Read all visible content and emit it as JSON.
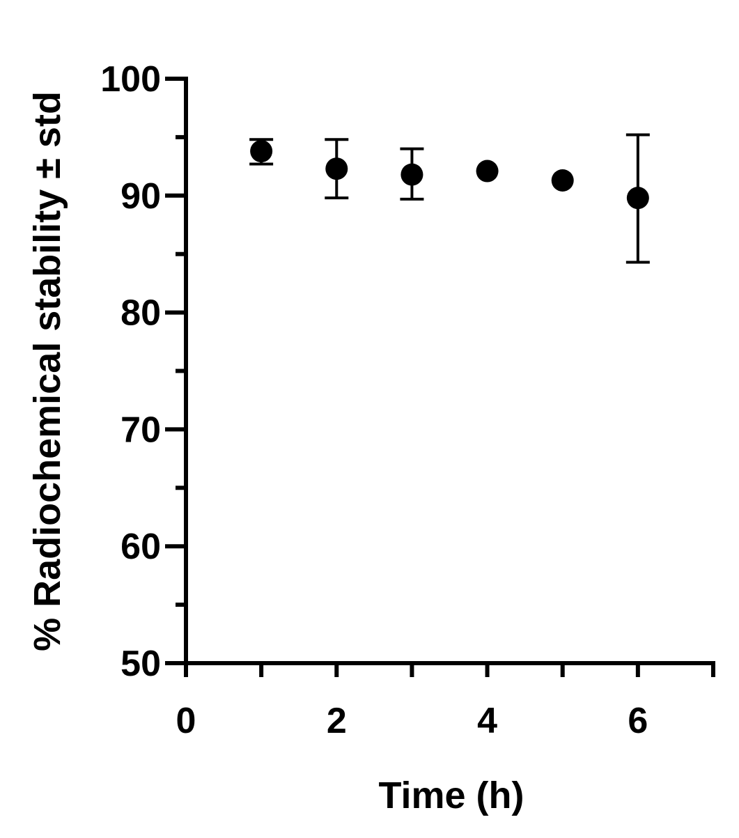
{
  "chart_data": {
    "type": "scatter",
    "xlabel": "Time (h)",
    "ylabel": "% Radiochemical stability ± std",
    "xlim": [
      0,
      7
    ],
    "ylim": [
      50,
      100
    ],
    "x_ticks": [
      0,
      2,
      4,
      6
    ],
    "x_minor_ticks": [
      1,
      3,
      5,
      7
    ],
    "y_ticks": [
      50,
      60,
      70,
      80,
      90,
      100
    ],
    "grid": false,
    "legend": "none",
    "marker_color": "#000000",
    "points": [
      {
        "x": 1,
        "y": 93.8,
        "err_low": 92.7,
        "err_high": 94.8
      },
      {
        "x": 2,
        "y": 92.3,
        "err_low": 89.8,
        "err_high": 94.8
      },
      {
        "x": 3,
        "y": 91.8,
        "err_low": 89.7,
        "err_high": 94.0
      },
      {
        "x": 4,
        "y": 92.1,
        "err_low": null,
        "err_high": null
      },
      {
        "x": 5,
        "y": 91.3,
        "err_low": null,
        "err_high": null
      },
      {
        "x": 6,
        "y": 89.8,
        "err_low": 84.3,
        "err_high": 95.2
      }
    ]
  }
}
